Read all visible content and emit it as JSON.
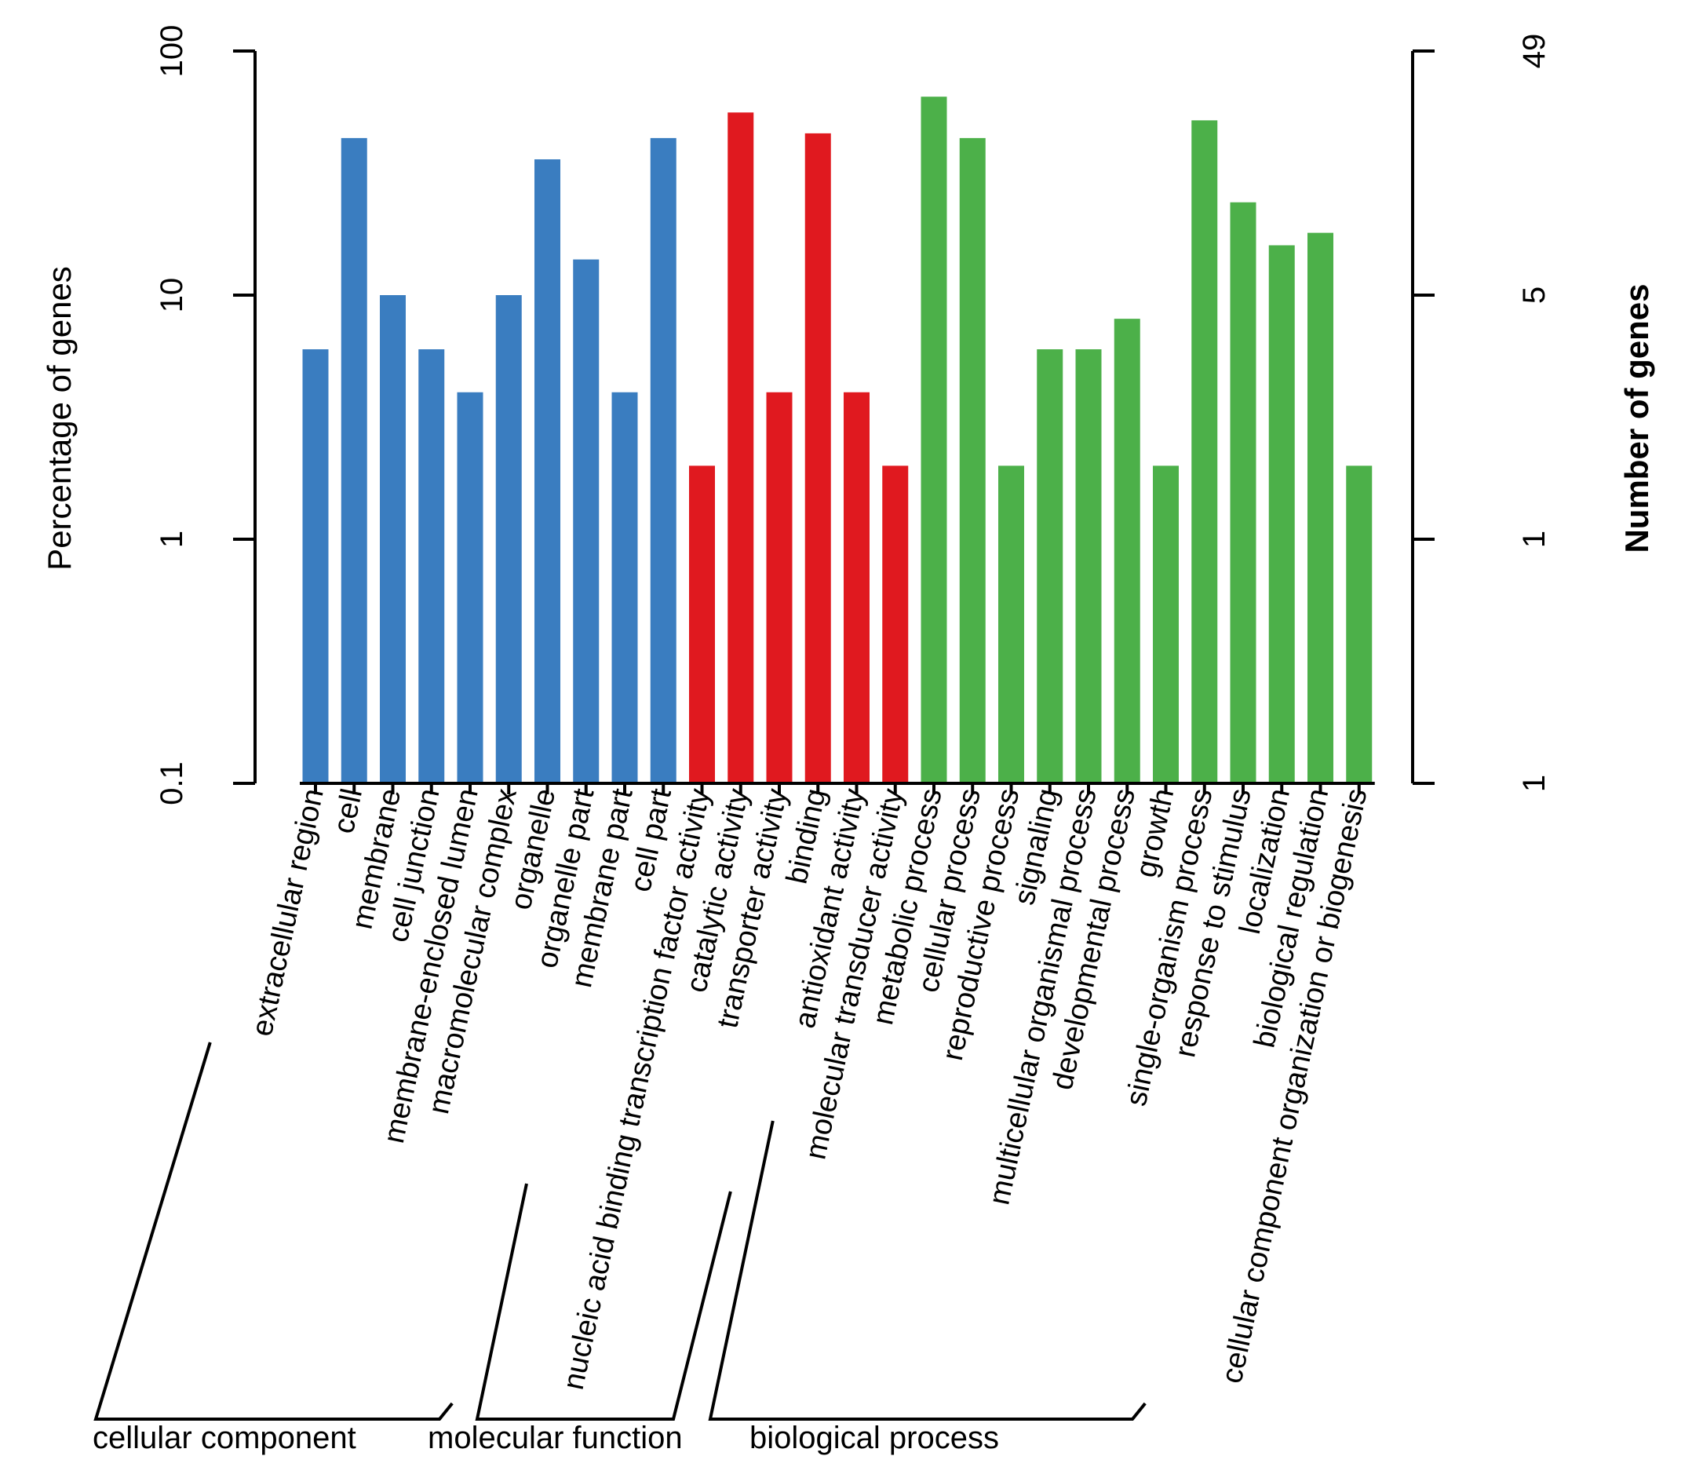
{
  "chart_data": {
    "type": "bar",
    "y_scale": "log",
    "ylabel_left": "Percentage of genes",
    "ylabel_right": "Number of genes",
    "ylim": [
      0.1,
      100
    ],
    "left_ticks": [
      "100",
      "10",
      "1",
      "0.1"
    ],
    "left_tick_values": [
      100,
      10,
      1,
      0.1
    ],
    "right_ticks": [
      "49",
      "5",
      "1",
      "1"
    ],
    "groups": [
      {
        "name": "cellular component",
        "color": "#3a7dc0"
      },
      {
        "name": "molecular function",
        "color": "#e0191f"
      },
      {
        "name": "biological process",
        "color": "#4cb049"
      }
    ],
    "categories": [
      "extracellular region",
      "cell",
      "membrane",
      "cell junction",
      "membrane-enclosed lumen",
      "macromolecular complex",
      "organelle",
      "organelle part",
      "membrane part",
      "cell part",
      "nucleic acid binding transcription factor activity",
      "catalytic activity",
      "transporter activity",
      "binding",
      "antioxidant activity",
      "molecular transducer activity",
      "metabolic process",
      "cellular process",
      "reproductive process",
      "signaling",
      "multicellular organismal process",
      "developmental process",
      "growth",
      "single-organism process",
      "response to stimulus",
      "localization",
      "biological regulation",
      "cellular component organization or biogenesis"
    ],
    "group_index": [
      0,
      0,
      0,
      0,
      0,
      0,
      0,
      0,
      0,
      0,
      1,
      1,
      1,
      1,
      1,
      1,
      2,
      2,
      2,
      2,
      2,
      2,
      2,
      2,
      2,
      2,
      2,
      2
    ],
    "values": [
      6,
      44,
      10,
      6,
      4,
      10,
      36,
      14,
      4,
      44,
      2,
      56,
      4,
      46,
      4,
      2,
      65,
      44,
      2,
      6,
      6,
      8,
      2,
      52,
      24,
      16,
      18,
      2
    ]
  }
}
